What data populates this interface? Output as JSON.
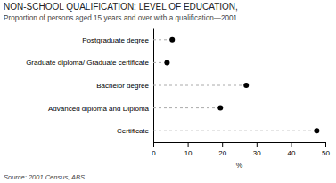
{
  "chart_data": {
    "type": "dot",
    "orientation": "horizontal",
    "title": "NON-SCHOOL QUALIFICATION: LEVEL OF EDUCATION,",
    "subtitle": "Proportion of persons aged 15 years and over with a qualification—2001",
    "categories": [
      "Postgraduate degree",
      "Graduate diploma/ Graduate certificate",
      "Bachelor degree",
      "Advanced diploma and Diploma",
      "Certificate"
    ],
    "values": [
      5.5,
      4.0,
      27.0,
      19.5,
      47.5
    ],
    "color": "#000000",
    "xlabel": "%",
    "xlim": [
      0,
      50
    ],
    "xticks": [
      0,
      10,
      20,
      30,
      40,
      50
    ],
    "grid": false,
    "source": "Source: 2001 Census, ABS"
  }
}
